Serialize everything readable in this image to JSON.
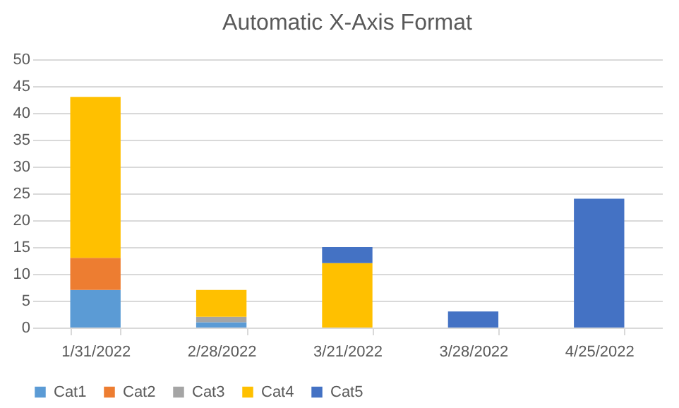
{
  "chart_data": {
    "type": "bar",
    "title": "Automatic X-Axis Format",
    "stacked": true,
    "categories": [
      "1/31/2022",
      "2/28/2022",
      "3/21/2022",
      "3/28/2022",
      "4/25/2022"
    ],
    "series": [
      {
        "name": "Cat1",
        "color": "#5b9bd5",
        "values": [
          7,
          1,
          null,
          null,
          null
        ]
      },
      {
        "name": "Cat2",
        "color": "#ed7d31",
        "values": [
          6,
          null,
          null,
          null,
          null
        ]
      },
      {
        "name": "Cat3",
        "color": "#a5a5a5",
        "values": [
          null,
          1,
          null,
          null,
          null
        ]
      },
      {
        "name": "Cat4",
        "color": "#ffc000",
        "values": [
          30,
          5,
          12,
          null,
          null
        ]
      },
      {
        "name": "Cat5",
        "color": "#4472c4",
        "values": [
          null,
          null,
          3,
          3,
          24
        ]
      }
    ],
    "ylim": [
      0,
      50
    ],
    "yticks": [
      0,
      5,
      10,
      15,
      20,
      25,
      30,
      35,
      40,
      45,
      50
    ],
    "grid": "y",
    "legend": "bottom"
  }
}
